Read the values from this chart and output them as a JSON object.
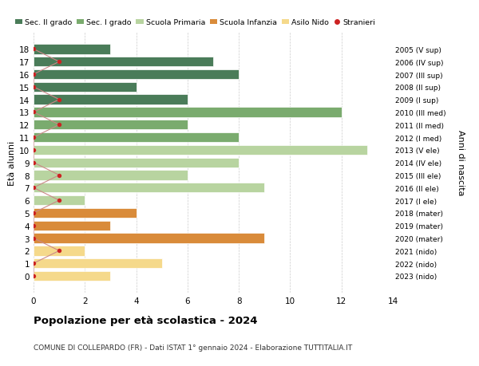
{
  "ages": [
    18,
    17,
    16,
    15,
    14,
    13,
    12,
    11,
    10,
    9,
    8,
    7,
    6,
    5,
    4,
    3,
    2,
    1,
    0
  ],
  "year_labels": [
    "2005 (V sup)",
    "2006 (IV sup)",
    "2007 (III sup)",
    "2008 (II sup)",
    "2009 (I sup)",
    "2010 (III med)",
    "2011 (II med)",
    "2012 (I med)",
    "2013 (V ele)",
    "2014 (IV ele)",
    "2015 (III ele)",
    "2016 (II ele)",
    "2017 (I ele)",
    "2018 (mater)",
    "2019 (mater)",
    "2020 (mater)",
    "2021 (nido)",
    "2022 (nido)",
    "2023 (nido)"
  ],
  "bar_values": [
    3,
    7,
    8,
    4,
    6,
    12,
    6,
    8,
    13,
    8,
    6,
    9,
    2,
    4,
    3,
    9,
    2,
    5,
    3
  ],
  "bar_colors": [
    "#4a7c59",
    "#4a7c59",
    "#4a7c59",
    "#4a7c59",
    "#4a7c59",
    "#7aab6e",
    "#7aab6e",
    "#7aab6e",
    "#b8d4a0",
    "#b8d4a0",
    "#b8d4a0",
    "#b8d4a0",
    "#b8d4a0",
    "#d98b3a",
    "#d98b3a",
    "#d98b3a",
    "#f5d98b",
    "#f5d98b",
    "#f5d98b"
  ],
  "legend_labels": [
    "Sec. II grado",
    "Sec. I grado",
    "Scuola Primaria",
    "Scuola Infanzia",
    "Asilo Nido",
    "Stranieri"
  ],
  "legend_colors": [
    "#4a7c59",
    "#7aab6e",
    "#b8d4a0",
    "#d98b3a",
    "#f5d98b",
    "#cc2222"
  ],
  "ylabel_left": "Età alunni",
  "ylabel_right": "Anni di nascita",
  "title": "Popolazione per età scolastica - 2024",
  "subtitle": "COMUNE DI COLLEPARDO (FR) - Dati ISTAT 1° gennaio 2024 - Elaborazione TUTTITALIA.IT",
  "xlim": [
    0,
    14
  ],
  "xticks": [
    0,
    2,
    4,
    6,
    8,
    10,
    12,
    14
  ],
  "background_color": "#ffffff",
  "grid_color": "#cccccc",
  "bar_height": 0.78,
  "stranieri_positions": [
    0,
    1,
    0,
    0,
    1,
    0,
    1,
    0,
    0,
    0,
    1,
    0,
    1,
    0,
    0,
    0,
    1,
    0,
    0
  ],
  "stranieri_dot_color": "#cc2222",
  "stranieri_line_color": "#cc8888"
}
